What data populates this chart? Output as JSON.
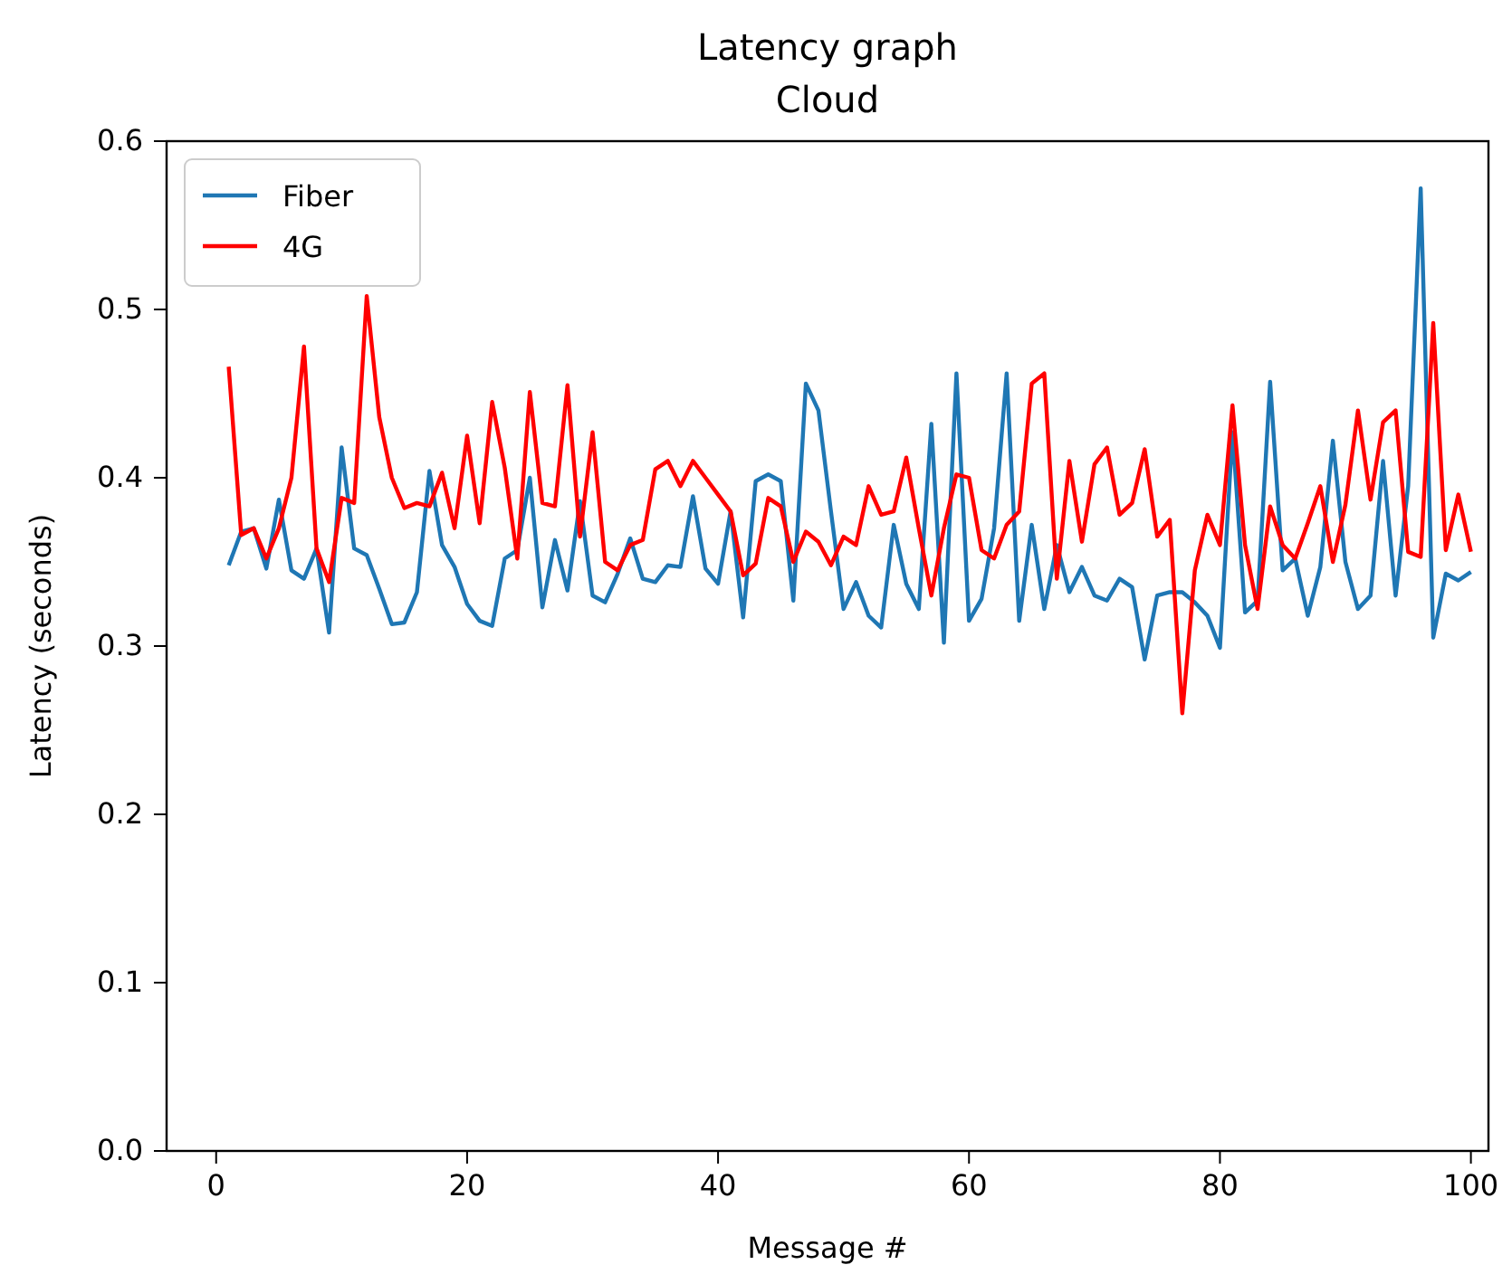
{
  "chart_data": {
    "type": "line",
    "title": "Latency graph",
    "subtitle": "Cloud",
    "xlabel": "Message #",
    "ylabel": "Latency (seconds)",
    "x": [
      1,
      2,
      3,
      4,
      5,
      6,
      7,
      8,
      9,
      10,
      11,
      12,
      13,
      14,
      15,
      16,
      17,
      18,
      19,
      20,
      21,
      22,
      23,
      24,
      25,
      26,
      27,
      28,
      29,
      30,
      31,
      32,
      33,
      34,
      35,
      36,
      37,
      38,
      39,
      40,
      41,
      42,
      43,
      44,
      45,
      46,
      47,
      48,
      49,
      50,
      51,
      52,
      53,
      54,
      55,
      56,
      57,
      58,
      59,
      60,
      61,
      62,
      63,
      64,
      65,
      66,
      67,
      68,
      69,
      70,
      71,
      72,
      73,
      74,
      75,
      76,
      77,
      78,
      79,
      80,
      81,
      82,
      83,
      84,
      85,
      86,
      87,
      88,
      89,
      90,
      91,
      92,
      93,
      94,
      95,
      96,
      97,
      98,
      99,
      100
    ],
    "series": [
      {
        "name": "Fiber",
        "color": "#1f77b4",
        "values": [
          0.348,
          0.368,
          0.37,
          0.346,
          0.387,
          0.345,
          0.34,
          0.358,
          0.308,
          0.418,
          0.358,
          0.354,
          0.334,
          0.313,
          0.314,
          0.332,
          0.404,
          0.36,
          0.347,
          0.325,
          0.315,
          0.312,
          0.352,
          0.357,
          0.4,
          0.323,
          0.363,
          0.333,
          0.386,
          0.33,
          0.326,
          0.343,
          0.364,
          0.34,
          0.338,
          0.348,
          0.347,
          0.389,
          0.346,
          0.337,
          0.38,
          0.317,
          0.398,
          0.402,
          0.398,
          0.327,
          0.456,
          0.44,
          0.38,
          0.322,
          0.338,
          0.318,
          0.311,
          0.372,
          0.337,
          0.322,
          0.432,
          0.302,
          0.462,
          0.315,
          0.328,
          0.37,
          0.462,
          0.315,
          0.372,
          0.322,
          0.36,
          0.332,
          0.347,
          0.33,
          0.327,
          0.34,
          0.335,
          0.292,
          0.33,
          0.332,
          0.332,
          0.326,
          0.318,
          0.299,
          0.427,
          0.32,
          0.327,
          0.457,
          0.345,
          0.352,
          0.318,
          0.347,
          0.422,
          0.35,
          0.322,
          0.33,
          0.41,
          0.33,
          0.395,
          0.572,
          0.305,
          0.343,
          0.339,
          0.344
        ]
      },
      {
        "name": "4G",
        "color": "#ff0000",
        "values": [
          0.466,
          0.366,
          0.37,
          0.352,
          0.37,
          0.4,
          0.478,
          0.358,
          0.338,
          0.388,
          0.385,
          0.508,
          0.436,
          0.4,
          0.382,
          0.385,
          0.383,
          0.403,
          0.37,
          0.425,
          0.373,
          0.445,
          0.406,
          0.352,
          0.451,
          0.385,
          0.383,
          0.455,
          0.365,
          0.427,
          0.35,
          0.345,
          0.36,
          0.363,
          0.405,
          0.41,
          0.395,
          0.41,
          0.4,
          0.39,
          0.38,
          0.342,
          0.349,
          0.388,
          0.383,
          0.35,
          0.368,
          0.362,
          0.348,
          0.365,
          0.36,
          0.395,
          0.378,
          0.38,
          0.412,
          0.37,
          0.33,
          0.37,
          0.402,
          0.4,
          0.357,
          0.352,
          0.372,
          0.38,
          0.456,
          0.462,
          0.34,
          0.41,
          0.362,
          0.408,
          0.418,
          0.378,
          0.385,
          0.417,
          0.365,
          0.375,
          0.26,
          0.345,
          0.378,
          0.36,
          0.443,
          0.36,
          0.322,
          0.383,
          0.36,
          0.352,
          0.373,
          0.395,
          0.35,
          0.384,
          0.44,
          0.387,
          0.433,
          0.44,
          0.356,
          0.353,
          0.492,
          0.357,
          0.39,
          0.356
        ]
      }
    ],
    "xlim": [
      -3.95,
      101.4
    ],
    "xticks": [
      0,
      20,
      40,
      60,
      80,
      100
    ],
    "ylim": [
      0,
      0.6
    ],
    "yticks": [
      {
        "value": 0,
        "label": "0.0"
      },
      {
        "value": 0.1,
        "label": "0.1"
      },
      {
        "value": 0.2,
        "label": "0.2"
      },
      {
        "value": 0.3,
        "label": "0.3"
      },
      {
        "value": 0.4,
        "label": "0.4"
      },
      {
        "value": 0.5,
        "label": "0.5"
      },
      {
        "value": 0.6,
        "label": "0.6"
      }
    ],
    "legend": "top left",
    "grid": false,
    "marker": "none",
    "line_style": "solid"
  }
}
